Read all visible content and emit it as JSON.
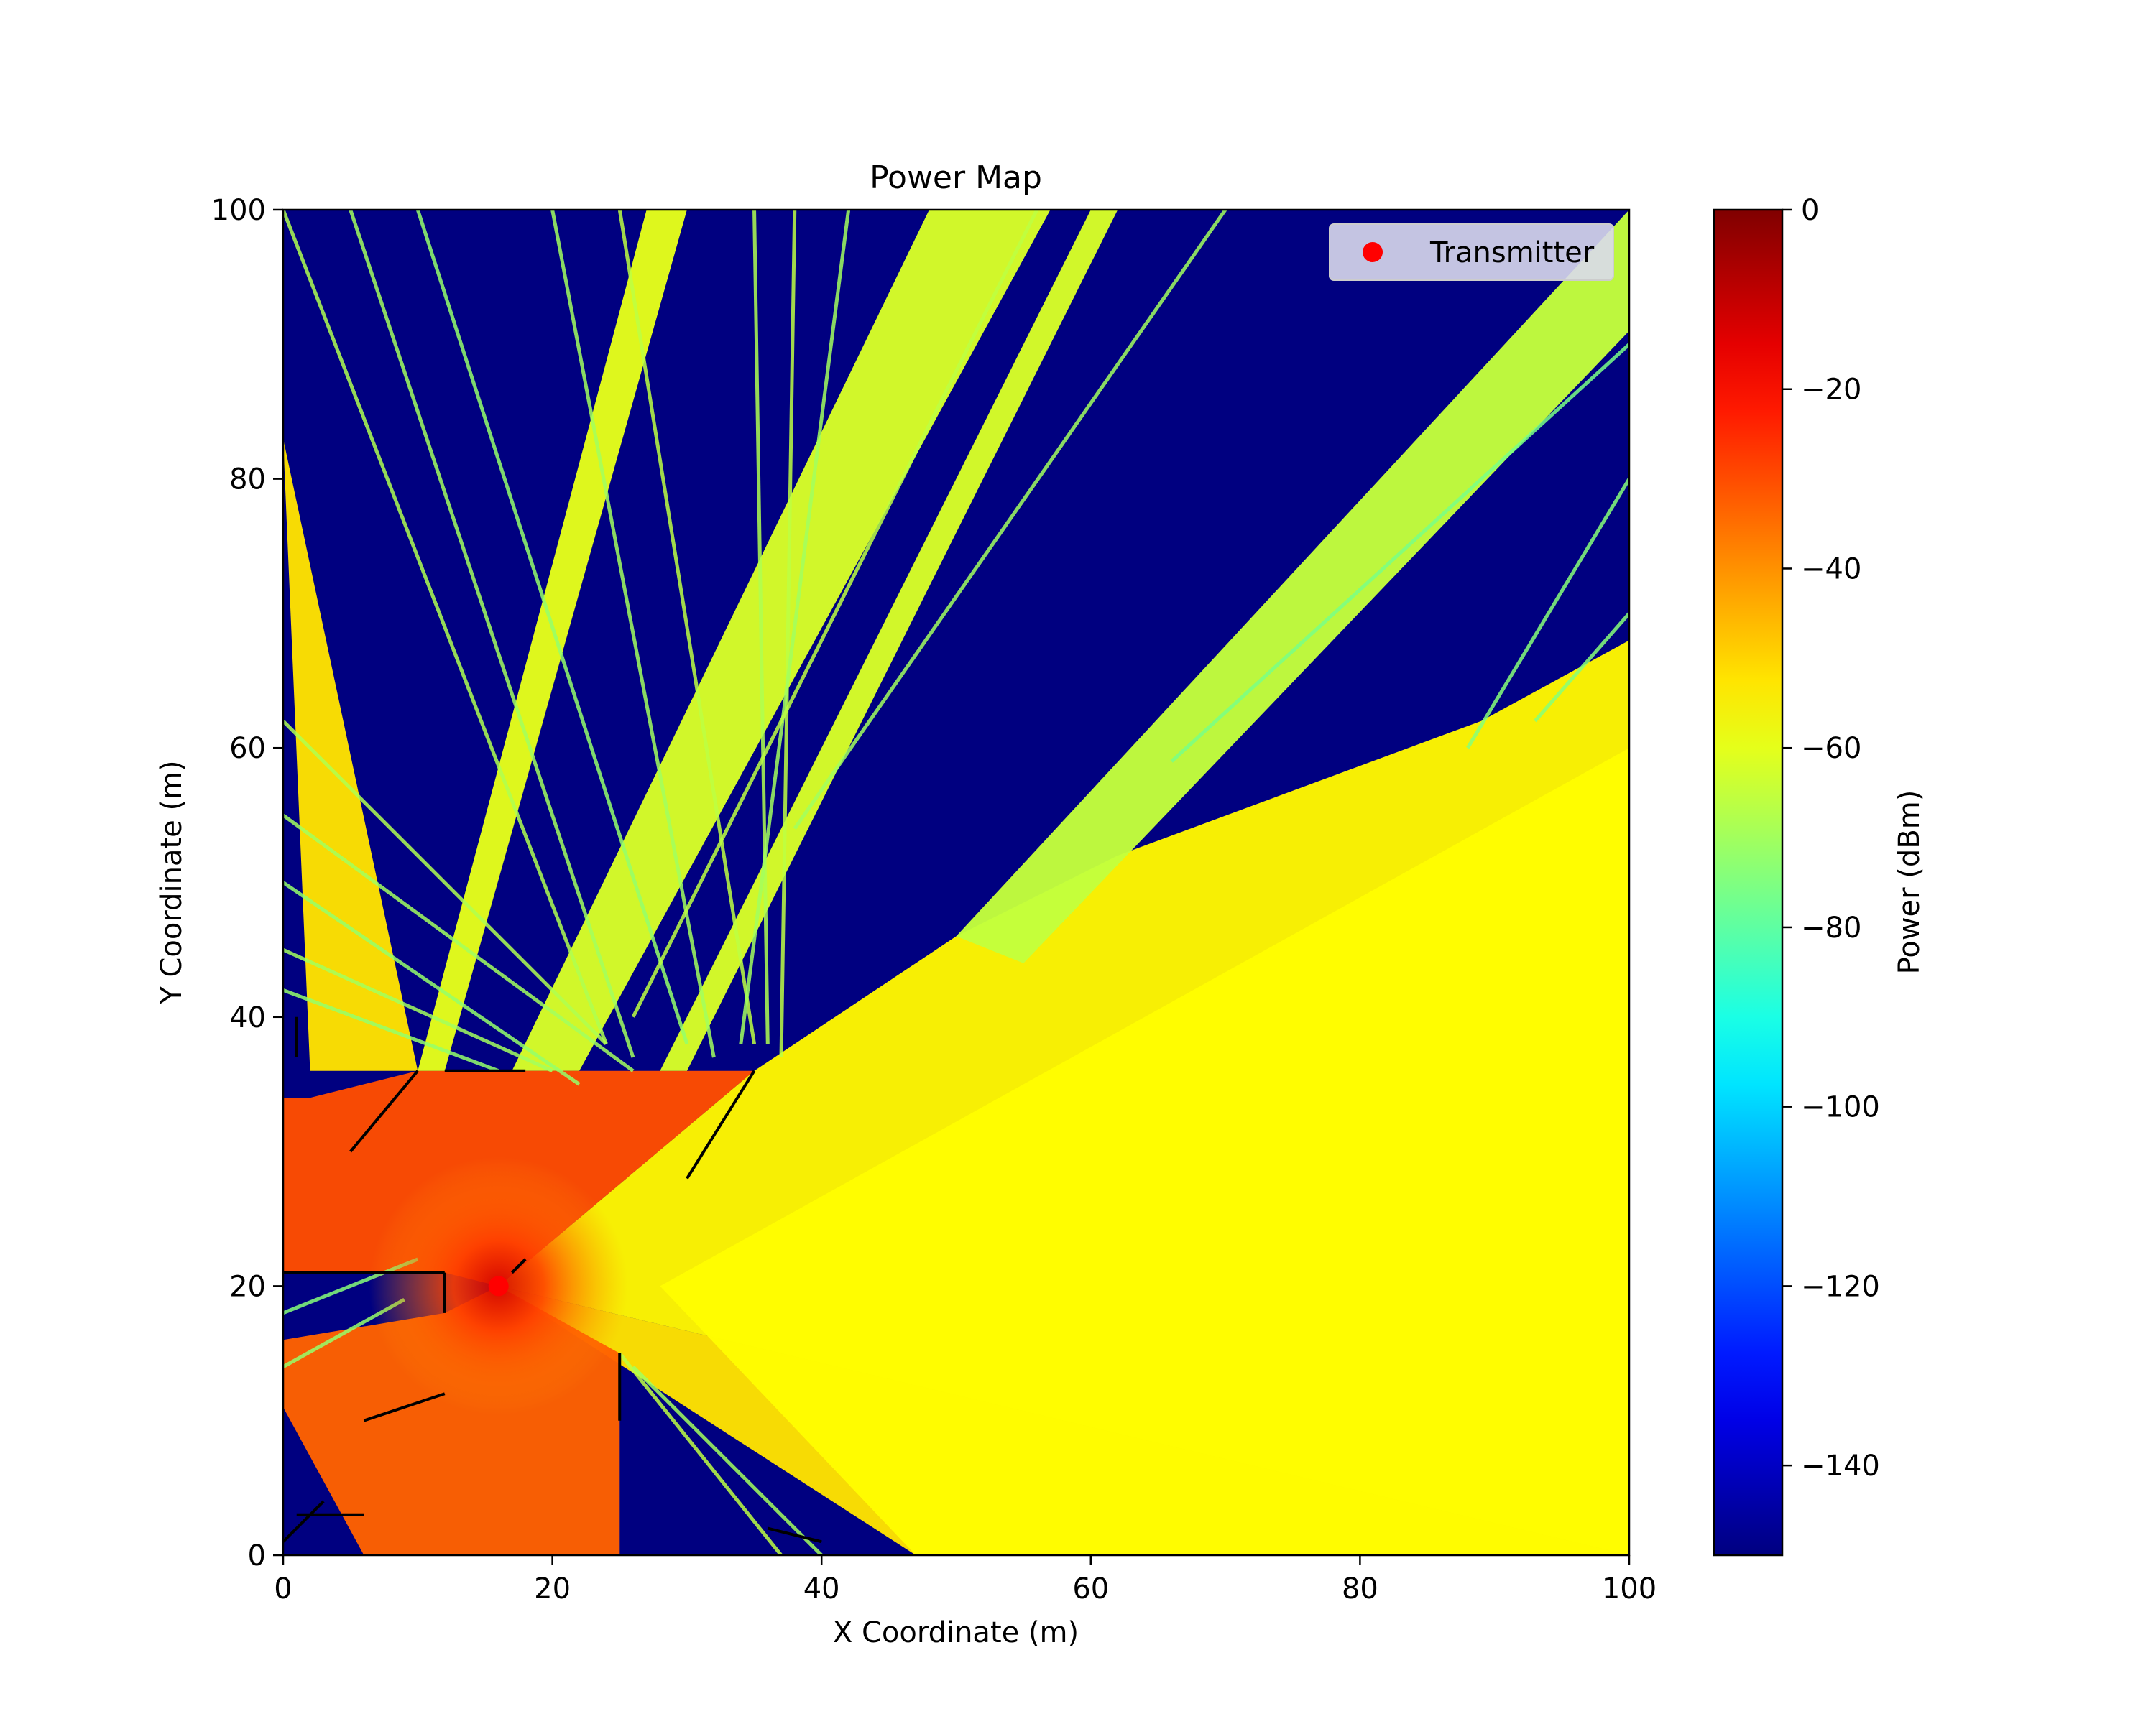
{
  "chart_data": {
    "type": "heatmap",
    "title": "Power Map",
    "xlabel": "X Coordinate (m)",
    "ylabel": "Y Coordinate (m)",
    "xlim": [
      0,
      100
    ],
    "ylim": [
      0,
      100
    ],
    "x_ticks": [
      0,
      20,
      40,
      60,
      80,
      100
    ],
    "y_ticks": [
      0,
      20,
      40,
      60,
      80,
      100
    ],
    "background_power_dbm": -150,
    "colorbar": {
      "label": "Power (dBm)",
      "range": [
        -150,
        0
      ],
      "ticks": [
        0,
        -20,
        -40,
        -60,
        -80,
        -100,
        -120,
        -140
      ],
      "colormap": "jet"
    },
    "legend": {
      "position": "upper right",
      "entries": [
        {
          "label": "Transmitter",
          "marker_color": "#ff0000"
        }
      ]
    },
    "transmitter": {
      "x": 16,
      "y": 20,
      "power_dbm": -12
    },
    "coverage_regions": [
      {
        "polygon": [
          [
            16,
            20
          ],
          [
            100,
            0
          ],
          [
            100,
            68
          ],
          [
            89,
            62
          ],
          [
            62,
            52
          ],
          [
            50,
            46
          ],
          [
            35,
            36
          ]
        ],
        "power_dbm": -55
      },
      {
        "polygon": [
          [
            16,
            20
          ],
          [
            47,
            0
          ],
          [
            100,
            0
          ]
        ],
        "power_dbm": -52
      },
      {
        "polygon": [
          [
            28,
            20
          ],
          [
            47,
            0
          ],
          [
            100,
            0
          ],
          [
            100,
            60
          ]
        ],
        "power_dbm": -56
      },
      {
        "polygon": [
          [
            50,
            46
          ],
          [
            100,
            100
          ],
          [
            100,
            91
          ],
          [
            55,
            44
          ]
        ],
        "power_dbm": -65
      },
      {
        "polygon": [
          [
            22,
            36
          ],
          [
            57,
            100
          ],
          [
            48,
            100
          ],
          [
            17,
            36
          ]
        ],
        "power_dbm": -62
      },
      {
        "polygon": [
          [
            16,
            20
          ],
          [
            35,
            36
          ],
          [
            22,
            36
          ],
          [
            12,
            36
          ],
          [
            10,
            36
          ],
          [
            2,
            34
          ],
          [
            0,
            34
          ],
          [
            0,
            21
          ],
          [
            12,
            21
          ]
        ],
        "power_dbm": -30
      },
      {
        "polygon": [
          [
            16,
            20
          ],
          [
            25,
            15
          ],
          [
            25,
            0
          ],
          [
            6,
            0
          ],
          [
            0,
            11
          ],
          [
            0,
            16
          ],
          [
            12,
            18
          ]
        ],
        "power_dbm": -33
      },
      {
        "polygon": [
          [
            0,
            83
          ],
          [
            10,
            36
          ],
          [
            2,
            36
          ]
        ],
        "power_dbm": -52
      },
      {
        "polygon": [
          [
            12,
            36
          ],
          [
            30,
            100
          ],
          [
            27,
            100
          ],
          [
            10,
            36
          ]
        ],
        "power_dbm": -60
      },
      {
        "polygon": [
          [
            30,
            36
          ],
          [
            62,
            100
          ],
          [
            60,
            100
          ],
          [
            28,
            36
          ]
        ],
        "power_dbm": -62
      }
    ],
    "ray_lines": [
      {
        "from": [
          0,
          100
        ],
        "to": [
          24,
          38
        ],
        "power_dbm": -68
      },
      {
        "from": [
          5,
          100
        ],
        "to": [
          26,
          37
        ],
        "power_dbm": -70
      },
      {
        "from": [
          10,
          100
        ],
        "to": [
          30,
          38
        ],
        "power_dbm": -72
      },
      {
        "from": [
          20,
          100
        ],
        "to": [
          32,
          37
        ],
        "power_dbm": -70
      },
      {
        "from": [
          25,
          100
        ],
        "to": [
          35,
          38
        ],
        "power_dbm": -66
      },
      {
        "from": [
          35,
          100
        ],
        "to": [
          36,
          38
        ],
        "power_dbm": -68
      },
      {
        "from": [
          38,
          100
        ],
        "to": [
          37,
          37
        ],
        "power_dbm": -66
      },
      {
        "from": [
          42,
          100
        ],
        "to": [
          34,
          38
        ],
        "power_dbm": -70
      },
      {
        "from": [
          70,
          100
        ],
        "to": [
          38,
          54
        ],
        "power_dbm": -70
      },
      {
        "from": [
          56,
          100
        ],
        "to": [
          26,
          40
        ],
        "power_dbm": -66
      },
      {
        "from": [
          0,
          62
        ],
        "to": [
          24,
          38
        ],
        "power_dbm": -68
      },
      {
        "from": [
          0,
          55
        ],
        "to": [
          26,
          36
        ],
        "power_dbm": -70
      },
      {
        "from": [
          0,
          50
        ],
        "to": [
          22,
          35
        ],
        "power_dbm": -72
      },
      {
        "from": [
          0,
          45
        ],
        "to": [
          20,
          36
        ],
        "power_dbm": -70
      },
      {
        "from": [
          0,
          42
        ],
        "to": [
          16,
          36
        ],
        "power_dbm": -72
      },
      {
        "from": [
          0,
          18
        ],
        "to": [
          10,
          22
        ],
        "power_dbm": -74
      },
      {
        "from": [
          0,
          14
        ],
        "to": [
          9,
          19
        ],
        "power_dbm": -72
      },
      {
        "from": [
          25,
          15
        ],
        "to": [
          37,
          0
        ],
        "power_dbm": -66
      },
      {
        "from": [
          26,
          14
        ],
        "to": [
          40,
          0
        ],
        "power_dbm": -70
      },
      {
        "from": [
          100,
          80
        ],
        "to": [
          88,
          60
        ],
        "power_dbm": -74
      },
      {
        "from": [
          100,
          70
        ],
        "to": [
          93,
          62
        ],
        "power_dbm": -74
      },
      {
        "from": [
          100,
          90
        ],
        "to": [
          66,
          59
        ],
        "power_dbm": -76
      }
    ],
    "walls": [
      [
        [
          5,
          30
        ],
        [
          10,
          36
        ]
      ],
      [
        [
          12,
          36
        ],
        [
          18,
          36
        ]
      ],
      [
        [
          12,
          21
        ],
        [
          12,
          18
        ]
      ],
      [
        [
          0,
          21
        ],
        [
          12,
          21
        ]
      ],
      [
        [
          25,
          15
        ],
        [
          25,
          10
        ]
      ],
      [
        [
          30,
          28
        ],
        [
          35,
          36
        ]
      ],
      [
        [
          17,
          21
        ],
        [
          18,
          22
        ]
      ],
      [
        [
          1,
          40
        ],
        [
          1,
          37
        ]
      ],
      [
        [
          1,
          3
        ],
        [
          6,
          3
        ]
      ],
      [
        [
          6,
          10
        ],
        [
          12,
          12
        ]
      ],
      [
        [
          36,
          2
        ],
        [
          40,
          1
        ]
      ],
      [
        [
          0,
          1
        ],
        [
          3,
          4
        ]
      ]
    ]
  }
}
